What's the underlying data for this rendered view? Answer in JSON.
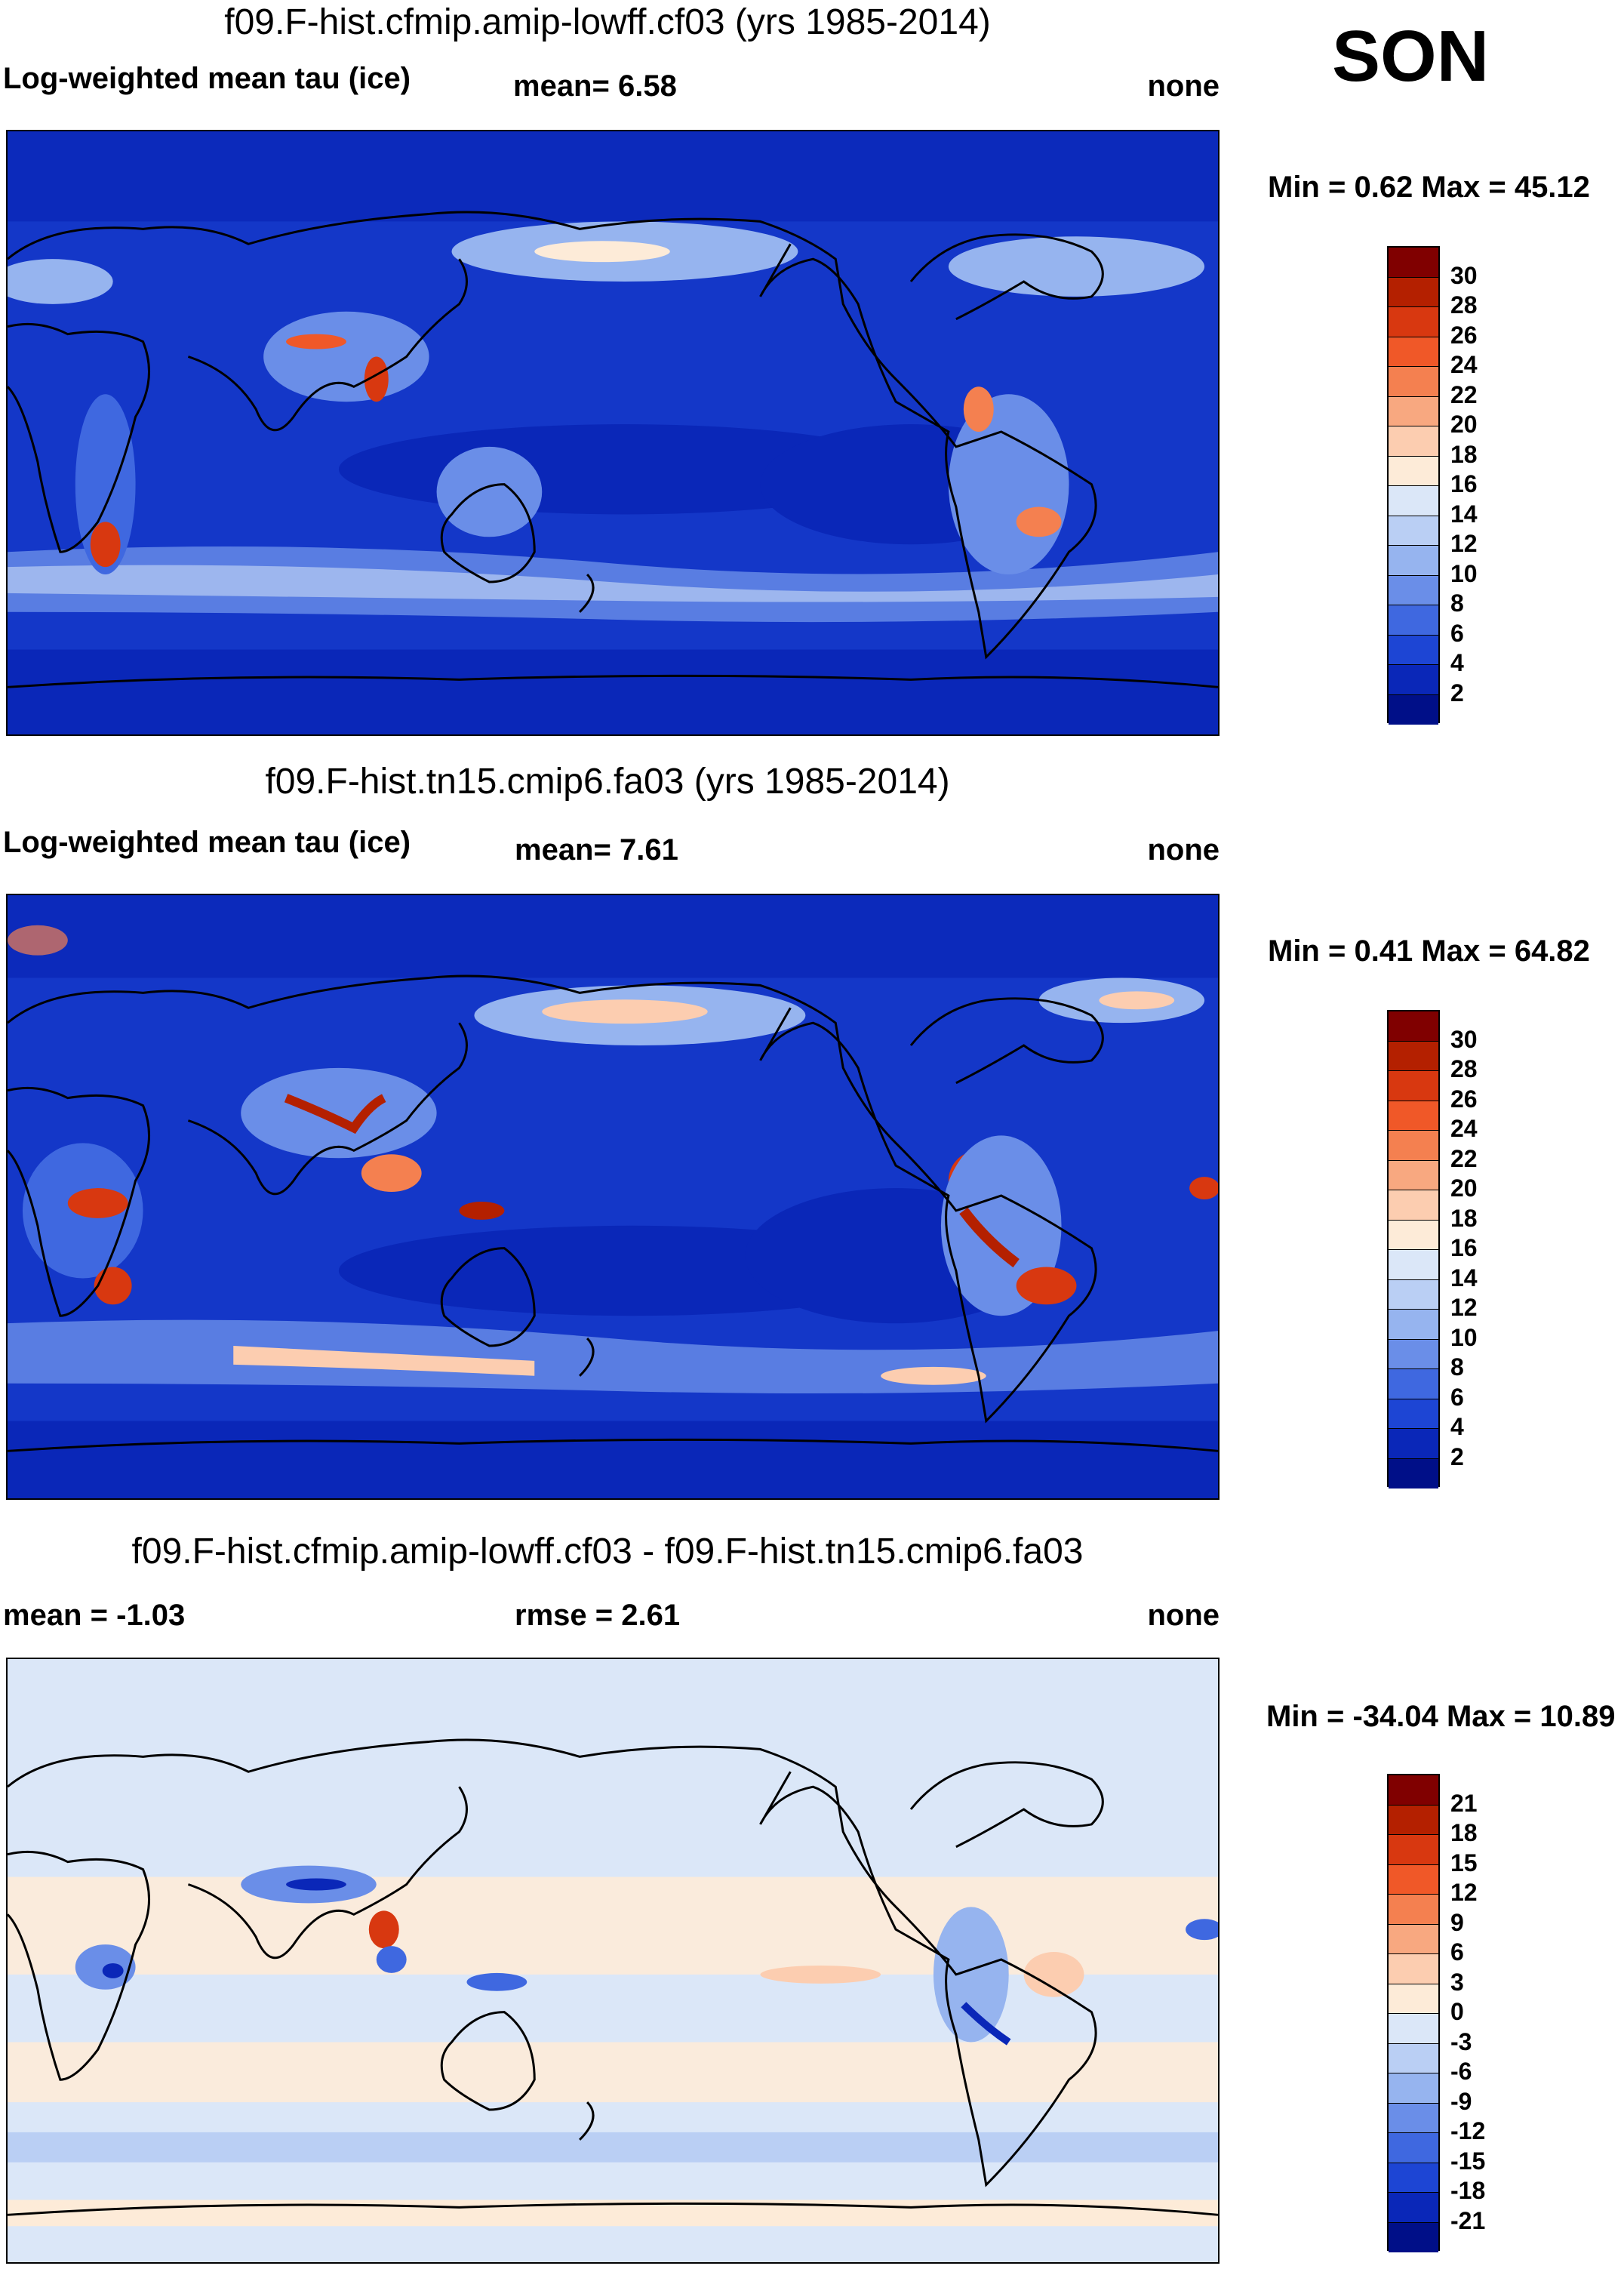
{
  "season": "SON",
  "panels": [
    {
      "title": "f09.F-hist.cfmip.amip-lowff.cf03 (yrs 1985-2014)",
      "left_label": "Log-weighted mean tau (ice)",
      "mid_label": "mean=   6.58",
      "right_label": "none",
      "minmax": "Min =   0.62 Max =  45.12",
      "colorbar_labels": [
        "30",
        "28",
        "26",
        "24",
        "22",
        "20",
        "18",
        "16",
        "14",
        "12",
        "10",
        "8",
        "6",
        "4",
        "2"
      ],
      "colorbar_colors": [
        "#800000",
        "#b42000",
        "#d83810",
        "#f05828",
        "#f48050",
        "#f8a880",
        "#fccdb0",
        "#fdebd8",
        "#dbe7f8",
        "#bacff4",
        "#96b4ef",
        "#6a8ee8",
        "#3f68e0",
        "#1d45d4",
        "#0a27b8",
        "#000f88"
      ]
    },
    {
      "title": "f09.F-hist.tn15.cmip6.fa03 (yrs 1985-2014)",
      "left_label": "Log-weighted mean tau (ice)",
      "mid_label": "mean=   7.61",
      "right_label": "none",
      "minmax": "Min =   0.41 Max =  64.82",
      "colorbar_labels": [
        "30",
        "28",
        "26",
        "24",
        "22",
        "20",
        "18",
        "16",
        "14",
        "12",
        "10",
        "8",
        "6",
        "4",
        "2"
      ],
      "colorbar_colors": [
        "#800000",
        "#b42000",
        "#d83810",
        "#f05828",
        "#f48050",
        "#f8a880",
        "#fccdb0",
        "#fdebd8",
        "#dbe7f8",
        "#bacff4",
        "#96b4ef",
        "#6a8ee8",
        "#3f68e0",
        "#1d45d4",
        "#0a27b8",
        "#000f88"
      ]
    },
    {
      "title": "f09.F-hist.cfmip.amip-lowff.cf03 - f09.F-hist.tn15.cmip6.fa03",
      "left_label": "mean =  -1.03",
      "mid_label": "rmse =   2.61",
      "right_label": "none",
      "minmax": "Min = -34.04 Max =  10.89",
      "colorbar_labels": [
        "21",
        "18",
        "15",
        "12",
        "9",
        "6",
        "3",
        "0",
        "-3",
        "-6",
        "-9",
        "-12",
        "-15",
        "-18",
        "-21"
      ],
      "colorbar_colors": [
        "#800000",
        "#b42000",
        "#d83810",
        "#f05828",
        "#f48050",
        "#f8a880",
        "#fccdb0",
        "#fdebd8",
        "#dbe7f8",
        "#bacff4",
        "#96b4ef",
        "#6a8ee8",
        "#3f68e0",
        "#1d45d4",
        "#0a27b8",
        "#000f88"
      ]
    }
  ],
  "map_fill_colors": {
    "panel1_background": "#1437c8",
    "panel2_background": "#1437c8",
    "panel3_background": "#dbe7f8"
  }
}
